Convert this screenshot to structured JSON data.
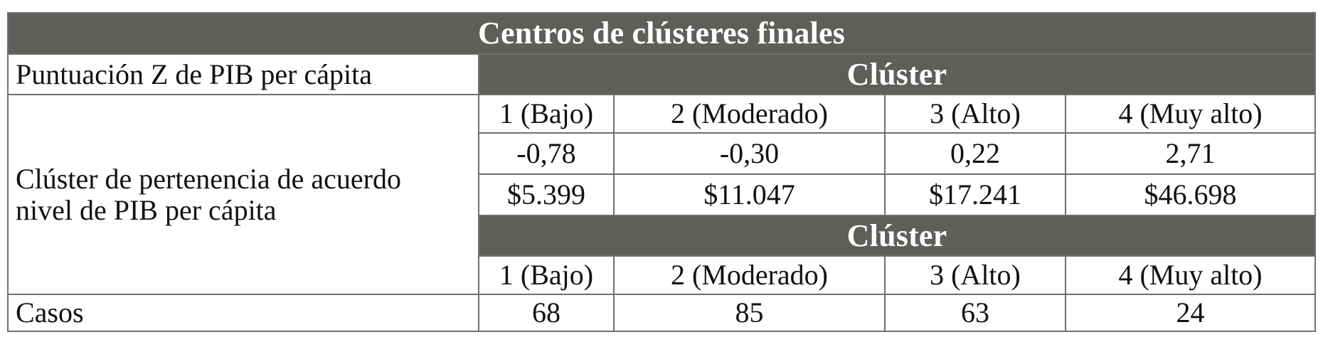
{
  "table": {
    "title": "Centros de clústeres finales",
    "zscore_label": "Puntuación Z de PIB per cápita",
    "cluster_header_top": "Clúster",
    "cluster_header_bottom": "Clúster",
    "membership_label_line1": "Clúster de pertenencia de acuerdo",
    "membership_label_line2": "nivel de PIB per cápita",
    "cluster_names": [
      "1 (Bajo)",
      "2 (Moderado)",
      "3 (Alto)",
      "4 (Muy alto)"
    ],
    "zscores": [
      "-0,78",
      "-0,30",
      "0,22",
      "2,71"
    ],
    "gdp_values": [
      "$5.399",
      "$11.047",
      "$17.241",
      "$46.698"
    ],
    "cluster_names_repeat": [
      "1 (Bajo)",
      "2 (Moderado)",
      "3 (Alto)",
      "4 (Muy alto)"
    ],
    "cases_label": "Casos",
    "cases": [
      "68",
      "85",
      "63",
      "24"
    ]
  }
}
